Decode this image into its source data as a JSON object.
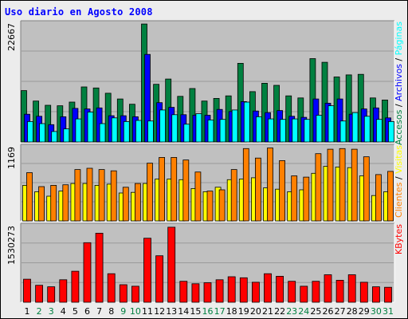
{
  "title": "Uso diario en Agosto 2008",
  "chart_data": [
    {
      "type": "bar",
      "panel": "top",
      "ymax_label": "22667",
      "ylim": [
        0,
        22667
      ],
      "categories": [
        "1",
        "2",
        "3",
        "4",
        "5",
        "6",
        "7",
        "8",
        "9",
        "10",
        "11",
        "12",
        "13",
        "14",
        "15",
        "16",
        "17",
        "18",
        "19",
        "20",
        "21",
        "22",
        "23",
        "24",
        "25",
        "26",
        "27",
        "28",
        "29",
        "30",
        "31"
      ],
      "series": [
        {
          "name": "Accesos",
          "color": "#008040",
          "values": [
            9800,
            7800,
            7000,
            6900,
            7600,
            10500,
            10300,
            9300,
            8200,
            7200,
            22500,
            11000,
            12000,
            8700,
            10200,
            7800,
            8300,
            8800,
            15000,
            9600,
            11200,
            10800,
            8800,
            8400,
            15900,
            15200,
            12400,
            12800,
            12900,
            8400,
            8000
          ]
        },
        {
          "name": "Archivos",
          "color": "#0000ff",
          "values": [
            5300,
            4900,
            3300,
            4800,
            6400,
            6300,
            6500,
            5000,
            5000,
            4800,
            16700,
            7500,
            6600,
            5200,
            5100,
            5100,
            6200,
            5800,
            7700,
            5900,
            5600,
            6000,
            4900,
            4700,
            8200,
            7400,
            8200,
            5300,
            6300,
            6500,
            4600
          ]
        },
        {
          "name": "Páginas",
          "color": "#00ffff",
          "values": [
            3900,
            3500,
            2000,
            2500,
            4400,
            5700,
            3500,
            4600,
            3900,
            4100,
            4000,
            6100,
            5200,
            3400,
            5400,
            4200,
            4300,
            6100,
            7600,
            4800,
            4400,
            4300,
            4400,
            4300,
            5100,
            6900,
            4000,
            5600,
            4900,
            4300,
            3900
          ]
        }
      ]
    },
    {
      "type": "bar",
      "panel": "middle",
      "ymax_label": "1169",
      "ylim": [
        0,
        1169
      ],
      "categories": [
        "1",
        "2",
        "3",
        "4",
        "5",
        "6",
        "7",
        "8",
        "9",
        "10",
        "11",
        "12",
        "13",
        "14",
        "15",
        "16",
        "17",
        "18",
        "19",
        "20",
        "21",
        "22",
        "23",
        "24",
        "25",
        "26",
        "27",
        "28",
        "29",
        "30",
        "31"
      ],
      "series": [
        {
          "name": "Visitas",
          "color": "#ffff00",
          "values": [
            560,
            460,
            390,
            470,
            590,
            590,
            560,
            580,
            440,
            450,
            590,
            660,
            660,
            650,
            510,
            460,
            530,
            650,
            660,
            680,
            520,
            500,
            460,
            490,
            750,
            860,
            850,
            840,
            710,
            400,
            460
          ]
        },
        {
          "name": "Clientes",
          "color": "#ff8000",
          "values": [
            760,
            540,
            560,
            570,
            810,
            830,
            810,
            790,
            530,
            590,
            910,
            1000,
            1000,
            960,
            770,
            470,
            490,
            810,
            1140,
            990,
            1150,
            950,
            710,
            690,
            1060,
            1130,
            1140,
            1130,
            1010,
            730,
            780
          ]
        }
      ]
    },
    {
      "type": "bar",
      "panel": "bottom",
      "ymax_label": "1530273",
      "ylim": [
        0,
        1530273
      ],
      "categories": [
        "1",
        "2",
        "3",
        "4",
        "5",
        "6",
        "7",
        "8",
        "9",
        "10",
        "11",
        "12",
        "13",
        "14",
        "15",
        "16",
        "17",
        "18",
        "19",
        "20",
        "21",
        "22",
        "23",
        "24",
        "25",
        "26",
        "27",
        "28",
        "29",
        "30",
        "31"
      ],
      "series": [
        {
          "name": "KBytes",
          "color": "#ff0000",
          "values": [
            460000,
            340000,
            310000,
            450000,
            620000,
            1190000,
            1380000,
            570000,
            350000,
            320000,
            1280000,
            930000,
            1500000,
            420000,
            370000,
            390000,
            450000,
            510000,
            490000,
            400000,
            570000,
            520000,
            420000,
            320000,
            420000,
            550000,
            440000,
            550000,
            400000,
            310000,
            300000
          ]
        }
      ]
    }
  ],
  "side_labels": {
    "top": [
      {
        "text": "Accesos",
        "color": "#008040"
      },
      {
        "text": " / ",
        "color": "#000000"
      },
      {
        "text": "Archivos",
        "color": "#0000ff"
      },
      {
        "text": " / ",
        "color": "#000000"
      },
      {
        "text": "Páginas",
        "color": "#00ffff"
      }
    ],
    "middle": [
      {
        "text": "Clientes",
        "color": "#ff8000"
      },
      {
        "text": " / ",
        "color": "#000000"
      },
      {
        "text": "Visitas",
        "color": "#ffff00"
      }
    ],
    "bottom": [
      {
        "text": "KBytes",
        "color": "#ff0000"
      }
    ]
  },
  "weekend_days": [
    "2",
    "3",
    "9",
    "10",
    "16",
    "17",
    "23",
    "24",
    "30",
    "31"
  ],
  "day_label_color_weekday": "#000000",
  "day_label_color_weekend": "#008040"
}
